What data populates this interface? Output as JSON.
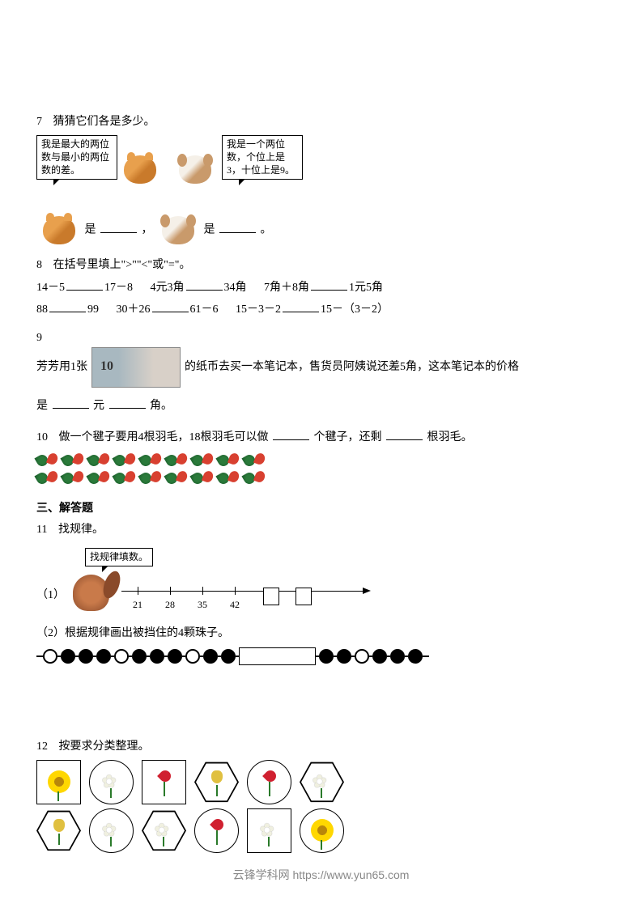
{
  "q7": {
    "num": "7",
    "title": "猜猜它们各是多少。",
    "speech_cat": "我是最大的两位数与最小的两位数的差。",
    "speech_dog": "我是一个两位数，个位上是3，十位上是9。",
    "ans_mid": "是",
    "ans_comma": "，",
    "ans_end": "是",
    "ans_period": "。"
  },
  "q8": {
    "num": "8",
    "title": "在括号里填上\">\"\"<\"或\"=\"。",
    "items": [
      {
        "l": "14－5",
        "r": "17－8"
      },
      {
        "l": "4元3角",
        "r": "34角"
      },
      {
        "l": "7角＋8角",
        "r": "1元5角"
      },
      {
        "l": "88",
        "r": "99"
      },
      {
        "l": "30＋26",
        "r": "61－6"
      },
      {
        "l": "15－3－2",
        "r": "15－（3－2）"
      }
    ]
  },
  "q9": {
    "num": "9",
    "p1": "芳芳用1张",
    "p2": "的纸币去买一本笔记本，售货员阿姨说还差5角，这本笔记本的价格",
    "p3": "是",
    "yuan": "元",
    "jiao": "角。"
  },
  "q10": {
    "num": "10",
    "text_a": "做一个毽子要用4根羽毛，18根羽毛可以做",
    "text_b": "个毽子，还剩",
    "text_c": "根羽毛。",
    "feather_count_row": 9,
    "rows": 2
  },
  "section3": {
    "title": "三、解答题"
  },
  "q11": {
    "num": "11",
    "title": "找规律。",
    "speech": "找规律填数。",
    "sub1": "（1）",
    "ticks": [
      "21",
      "28",
      "35",
      "42"
    ],
    "sub2": "（2）根据规律画出被挡住的4颗珠子。",
    "bead_pattern": [
      "w",
      "b",
      "b",
      "b",
      "w",
      "b",
      "b",
      "b",
      "w",
      "b",
      "b",
      "box",
      "b",
      "b",
      "w",
      "b",
      "b",
      "b"
    ]
  },
  "q12": {
    "num": "12",
    "title": "按要求分类整理。",
    "row1": [
      {
        "shape": "square",
        "flower": "sun"
      },
      {
        "shape": "circle",
        "flower": "lily"
      },
      {
        "shape": "square",
        "flower": "rose"
      },
      {
        "shape": "hex",
        "flower": "tulip"
      },
      {
        "shape": "circle",
        "flower": "rose"
      },
      {
        "shape": "hex",
        "flower": "lily"
      }
    ],
    "row2": [
      {
        "shape": "hex",
        "flower": "tulip"
      },
      {
        "shape": "circle",
        "flower": "lily"
      },
      {
        "shape": "hex",
        "flower": "lily"
      },
      {
        "shape": "circle",
        "flower": "rose"
      },
      {
        "shape": "square",
        "flower": "lily"
      },
      {
        "shape": "circle",
        "flower": "sun"
      }
    ]
  },
  "footer": {
    "text": "云锋学科网 https://www.yun65.com"
  },
  "colors": {
    "text": "#000000",
    "bg": "#ffffff",
    "footer": "#888888"
  }
}
